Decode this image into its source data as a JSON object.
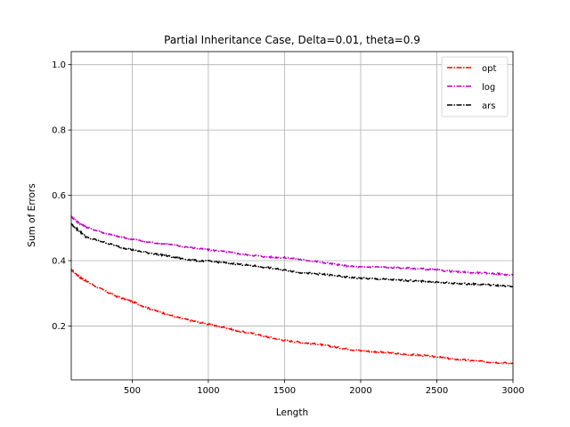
{
  "chart_data": {
    "type": "line",
    "title": "Partial Inheritance Case, Delta=0.01, theta=0.9",
    "xlabel": "Length",
    "ylabel": "Sum of Errors",
    "xlim": [
      100,
      3000
    ],
    "ylim": [
      0.035,
      1.04
    ],
    "xticks": [
      500,
      1000,
      1500,
      2000,
      2500,
      3000
    ],
    "yticks": [
      0.2,
      0.4,
      0.6,
      0.8,
      1.0
    ],
    "xtick_labels": [
      "500",
      "1000",
      "1500",
      "2000",
      "2500",
      "3000"
    ],
    "ytick_labels": [
      "0.2",
      "0.4",
      "0.6",
      "0.8",
      "1.0"
    ],
    "grid": true,
    "legend_position": "top-right",
    "x": [
      100,
      150,
      200,
      300,
      400,
      500,
      600,
      700,
      800,
      900,
      1000,
      1100,
      1200,
      1300,
      1400,
      1500,
      1600,
      1700,
      1800,
      1900,
      2000,
      2100,
      2200,
      2300,
      2400,
      2500,
      2600,
      2700,
      2800,
      2900,
      3000
    ],
    "series": [
      {
        "name": "opt",
        "color": "#ff0000",
        "style": "dashdot",
        "values": [
          0.372,
          0.352,
          0.336,
          0.312,
          0.29,
          0.275,
          0.255,
          0.24,
          0.226,
          0.215,
          0.205,
          0.196,
          0.184,
          0.176,
          0.165,
          0.156,
          0.15,
          0.145,
          0.138,
          0.13,
          0.124,
          0.121,
          0.117,
          0.113,
          0.11,
          0.105,
          0.099,
          0.095,
          0.091,
          0.088,
          0.086
        ]
      },
      {
        "name": "log",
        "color": "#bf00bf",
        "style": "dashdot",
        "values": [
          0.535,
          0.515,
          0.502,
          0.487,
          0.474,
          0.466,
          0.457,
          0.452,
          0.446,
          0.439,
          0.433,
          0.428,
          0.421,
          0.416,
          0.411,
          0.409,
          0.404,
          0.398,
          0.391,
          0.384,
          0.38,
          0.381,
          0.379,
          0.377,
          0.375,
          0.371,
          0.367,
          0.364,
          0.362,
          0.36,
          0.355
        ]
      },
      {
        "name": "ars",
        "color": "#000000",
        "style": "dashdot",
        "values": [
          0.512,
          0.492,
          0.471,
          0.459,
          0.444,
          0.433,
          0.424,
          0.417,
          0.408,
          0.401,
          0.398,
          0.394,
          0.389,
          0.384,
          0.378,
          0.371,
          0.364,
          0.36,
          0.356,
          0.35,
          0.346,
          0.344,
          0.342,
          0.339,
          0.337,
          0.334,
          0.331,
          0.329,
          0.327,
          0.324,
          0.32
        ]
      }
    ]
  }
}
